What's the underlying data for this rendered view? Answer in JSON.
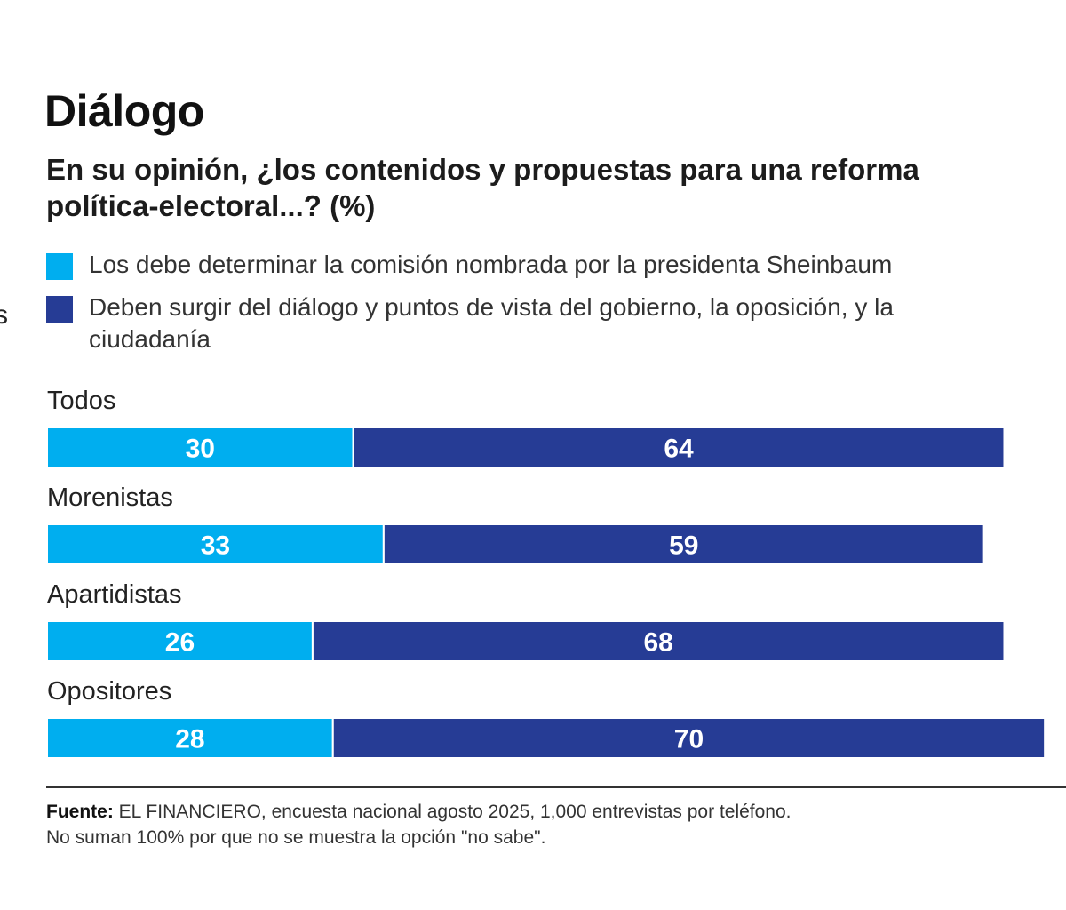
{
  "stray_glyph": "s",
  "colors": {
    "series_1": "#00AEEF",
    "series_2": "#263C95"
  },
  "chart_data": {
    "type": "bar",
    "orientation": "horizontal",
    "stacked": true,
    "title": "Diálogo",
    "subtitle": "En su opinión, ¿los contenidos y propuestas para una reforma política-electoral...? (%)",
    "categories": [
      "Todos",
      "Morenistas",
      "Apartidistas",
      "Opositores"
    ],
    "series": [
      {
        "name": "Los debe determinar la comisión nombrada por la presidenta Sheinbaum",
        "color": "#00AEEF",
        "values": [
          30,
          33,
          26,
          28
        ]
      },
      {
        "name": "Deben surgir del diálogo y puntos de vista del gobierno, la oposición, y la ciudadanía",
        "color": "#263C95",
        "values": [
          64,
          59,
          68,
          70
        ]
      }
    ],
    "xlim": [
      0,
      100
    ],
    "grid": false,
    "legend_position": "top"
  },
  "source": {
    "label": "Fuente:",
    "text": "EL FINANCIERO, encuesta nacional agosto 2025, 1,000 entrevistas por teléfono.",
    "note": "No suman 100% por que no se muestra la opción \"no sabe\"."
  }
}
